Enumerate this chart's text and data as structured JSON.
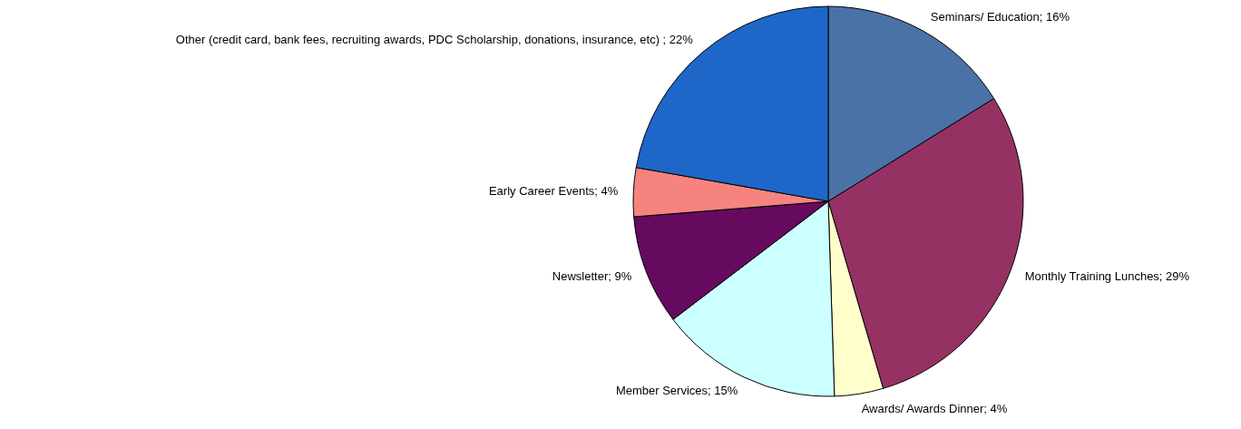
{
  "chart_data": {
    "type": "pie",
    "categories": [
      "Seminars/ Education",
      "Monthly Training Lunches",
      "Awards/ Awards Dinner",
      "Member Services",
      "Newsletter",
      "Early Career Events",
      "Other (credit card, bank  fees, recruiting awards,  PDC Scholarship, donations, insurance, etc) "
    ],
    "values": [
      16,
      29,
      4,
      15,
      9,
      4,
      22
    ],
    "value_labels": [
      "16%",
      "29%",
      "4%",
      "15%",
      "9%",
      "4%",
      "22%"
    ],
    "colors": [
      "#4a72a6",
      "#963263",
      "#ffffcc",
      "#ccffff",
      "#650a5e",
      "#f7837f",
      "#1e67c8"
    ]
  }
}
